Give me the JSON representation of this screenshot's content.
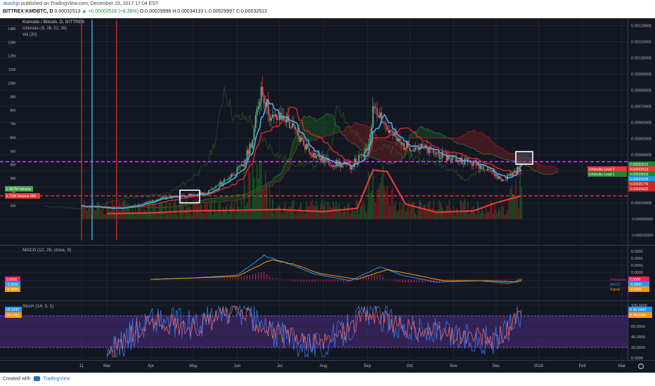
{
  "header": {
    "user": "akashjp",
    "published": "published on TradingView.com, December 19, 2017 17:04 EST",
    "symbol": "BITTREX:KMDBTC, D",
    "last": "0.00032513",
    "change": "▲ +0.00002516 (+8.39%)",
    "o": "O:0.00029998",
    "h": "H:0.00034133",
    "l": "L:0.00029997",
    "c": "C:0.00032513"
  },
  "footer": {
    "created": "Created with",
    "brand": "TradingView"
  },
  "colors": {
    "background": "#131722",
    "grid": "#1f2633",
    "text": "#b2b5be",
    "candle_up": "#53b987",
    "candle_down": "#eb4d5c",
    "conversion": "#4fa8e8",
    "base": "#c62828",
    "cloud_bull": "#1b5e20",
    "cloud_bear": "#7b1f1f",
    "volume_ma": "#e53935",
    "purple_line": "#e040fb",
    "macd": "#2196f3",
    "signal": "#ff9800",
    "stoch_k": "#2f7df6",
    "stoch_d": "#ef6c6c",
    "stoch_band": "#4a2a7a"
  },
  "chart_data": [
    {
      "type": "candlestick",
      "pane": "price",
      "title": "Komodo / Bitcoin, D, BITTREX",
      "indicators": [
        "Ichimoku (9, 26, 52, 26)",
        "Vol (20)"
      ],
      "x_ticks": [
        "11",
        "Mar",
        "Apr",
        "May",
        "Jun",
        "Jul",
        "Aug",
        "Sep",
        "Oct",
        "Nov",
        "Dec",
        "2018",
        "Feb",
        "Mar"
      ],
      "left_axis_ticks": [
        "14M",
        "13M",
        "12M",
        "11M",
        "10M",
        "9M",
        "8M",
        "7M",
        "6M",
        "5M",
        "4M",
        "3M",
        "2M",
        "1M"
      ],
      "right_axis_ticks": [
        "0.00120000",
        "0.00110000",
        "0.00100000",
        "0.00090000",
        "0.00080000",
        "0.00070000",
        "0.00060000",
        "0.00050000",
        "0.00040000",
        "0.00030000",
        "0.00020000",
        "0.00010000",
        "-0.00000000",
        "-0.00010000"
      ],
      "close_series": [
        [
          "Feb 11",
          8e-05
        ],
        [
          "Feb 25",
          7.2e-05
        ],
        [
          "Mar 10",
          6.5e-05
        ],
        [
          "Mar 25",
          9e-05
        ],
        [
          "Apr 10",
          0.000135
        ],
        [
          "Apr 25",
          0.000145
        ],
        [
          "May 10",
          0.000158
        ],
        [
          "May 25",
          0.00025
        ],
        [
          "Jun 5",
          0.00033
        ],
        [
          "Jun 12",
          0.0005
        ],
        [
          "Jun 18",
          0.00082
        ],
        [
          "Jun 25",
          0.00062
        ],
        [
          "Jul 5",
          0.00063
        ],
        [
          "Jul 15",
          0.0005
        ],
        [
          "Jul 25",
          0.0004
        ],
        [
          "Aug 5",
          0.00035
        ],
        [
          "Aug 20",
          0.00033
        ],
        [
          "Sep 1",
          0.00042
        ],
        [
          "Sep 6",
          0.00072
        ],
        [
          "Sep 15",
          0.00056
        ],
        [
          "Sep 25",
          0.00046
        ],
        [
          "Oct 10",
          0.00044
        ],
        [
          "Oct 25",
          0.00039
        ],
        [
          "Nov 10",
          0.00036
        ],
        [
          "Nov 25",
          0.00032
        ],
        [
          "Dec 5",
          0.00024
        ],
        [
          "Dec 12",
          0.00028
        ],
        [
          "Dec 19",
          0.000325
        ]
      ],
      "horizontal_line": {
        "value": 0.000356,
        "style": "dashed"
      },
      "volume_ma_line": {
        "label": "Volume MA",
        "value": "1.71M",
        "style": "dashed"
      },
      "volume_ma_series": [
        [
          "Mar 1",
          0.4
        ],
        [
          "Apr 1",
          0.45
        ],
        [
          "May 1",
          0.6
        ],
        [
          "Jun 1",
          0.65
        ],
        [
          "Jul 1",
          0.7
        ],
        [
          "Aug 1",
          0.55
        ],
        [
          "Aug 25",
          0.8
        ],
        [
          "Sep 5",
          3.6
        ],
        [
          "Sep 15",
          3.5
        ],
        [
          "Sep 28",
          1.1
        ],
        [
          "Oct 20",
          0.5
        ],
        [
          "Nov 15",
          0.6
        ],
        [
          "Dec 1",
          1.2
        ],
        [
          "Dec 19",
          1.71
        ]
      ],
      "left_badges": [
        {
          "label": "Volume",
          "value": "1.987M"
        },
        {
          "label": "Volume MA",
          "value": "1.71M"
        }
      ],
      "right_badges": [
        {
          "label": "",
          "value": "0.00032513"
        },
        {
          "label": "Ichimoku Lead 2",
          "value": "0.00032513"
        },
        {
          "label": "Ichimoku Lead 1",
          "value": "0.00029503"
        },
        {
          "label": "",
          "value": "0.00029335"
        },
        {
          "label": "",
          "value": "0.00025776"
        },
        {
          "label": "",
          "value": "0.00025632"
        }
      ]
    },
    {
      "type": "line",
      "pane": "macd",
      "title": "MACD (12, 26, close, 9)",
      "y_ticks": [
        "0.0002",
        "0.0001",
        "0.0001",
        "0.0000",
        "-0.0000",
        "-0.0001"
      ],
      "series": [
        {
          "name": "MACD",
          "points": [
            [
              "Apr 1",
              0.0
            ],
            [
              "May 1",
              1e-05
            ],
            [
              "Jun 1",
              3e-05
            ],
            [
              "Jun 20",
              0.00017
            ],
            [
              "Jul 5",
              0.00012
            ],
            [
              "Jul 25",
              4e-05
            ],
            [
              "Aug 20",
              -1e-05
            ],
            [
              "Sep 10",
              9e-05
            ],
            [
              "Sep 25",
              3e-05
            ],
            [
              "Oct 20",
              -2e-05
            ],
            [
              "Nov 20",
              -1e-05
            ],
            [
              "Dec 10",
              -3e-05
            ],
            [
              "Dec 19",
              0.0
            ]
          ]
        },
        {
          "name": "Signal",
          "points": [
            [
              "Apr 1",
              0.0
            ],
            [
              "May 1",
              1e-05
            ],
            [
              "Jun 1",
              2e-05
            ],
            [
              "Jun 25",
              0.00014
            ],
            [
              "Jul 10",
              0.00011
            ],
            [
              "Jul 30",
              4e-05
            ],
            [
              "Aug 25",
              0.0
            ],
            [
              "Sep 15",
              7e-05
            ],
            [
              "Sep 30",
              4e-05
            ],
            [
              "Oct 25",
              -1e-05
            ],
            [
              "Nov 25",
              -1e-05
            ],
            [
              "Dec 15",
              -2e-05
            ],
            [
              "Dec 19",
              -1e-05
            ]
          ]
        }
      ],
      "right_badges": [
        {
          "label": "Histogram",
          "value": "0.0000"
        },
        {
          "label": "MACD",
          "value": "-0.0000"
        },
        {
          "label": "Signal",
          "value": "-0.0000"
        }
      ],
      "left_badges": [
        {
          "value": "0.0000"
        },
        {
          "value": "-0.0000"
        },
        {
          "value": "-0.0000"
        }
      ]
    },
    {
      "type": "line",
      "pane": "stoch",
      "title": "Stoch (14, 3, 1)",
      "y_ticks": [
        "100.0000",
        "80.0000",
        "60.0000",
        "40.0000",
        "20.0000",
        "0.0000"
      ],
      "band": [
        20,
        80
      ],
      "series": [
        {
          "name": "K",
          "points": [
            [
              "Mar 1",
              5
            ],
            [
              "Apr 1",
              75
            ],
            [
              "May 1",
              60
            ],
            [
              "Jun 1",
              95
            ],
            [
              "Jul 1",
              40
            ],
            [
              "Aug 1",
              20
            ],
            [
              "Sep 1",
              90
            ],
            [
              "Oct 1",
              55
            ],
            [
              "Nov 1",
              40
            ],
            [
              "Dec 1",
              30
            ],
            [
              "Dec 19",
              90.5443
            ]
          ]
        },
        {
          "name": "D",
          "points": [
            [
              "Mar 1",
              10
            ],
            [
              "Apr 1",
              70
            ],
            [
              "May 1",
              58
            ],
            [
              "Jun 1",
              90
            ],
            [
              "Jul 1",
              45
            ],
            [
              "Aug 1",
              25
            ],
            [
              "Sep 1",
              85
            ],
            [
              "Oct 1",
              55
            ],
            [
              "Nov 1",
              42
            ],
            [
              "Dec 1",
              35
            ],
            [
              "Dec 19",
              79.2763
            ]
          ]
        }
      ],
      "right_badges": [
        {
          "label": "K",
          "value": "90.5443"
        },
        {
          "label": "D",
          "value": "79.2763"
        }
      ],
      "left_badges": [
        {
          "value": "90.5443"
        },
        {
          "value": "79.2763"
        }
      ]
    }
  ]
}
